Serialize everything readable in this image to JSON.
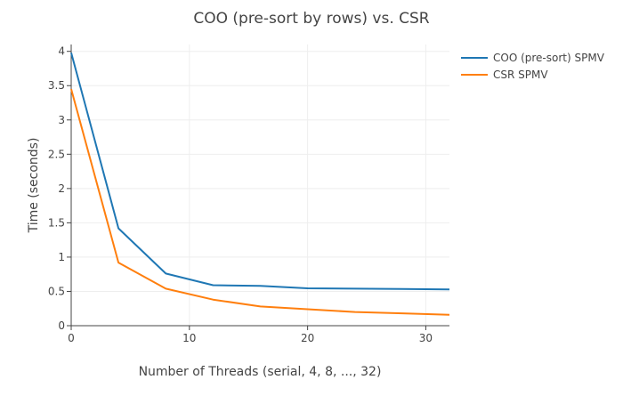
{
  "chart_data": {
    "type": "line",
    "title": "COO (pre-sort by rows) vs. CSR",
    "xlabel": "Number of Threads (serial, 4, 8, ..., 32)",
    "ylabel": "Time (seconds)",
    "xlim": [
      0,
      32
    ],
    "ylim": [
      0,
      4.1
    ],
    "xticks": [
      0,
      10,
      20,
      30
    ],
    "yticks": [
      0,
      0.5,
      1,
      1.5,
      2,
      2.5,
      3,
      3.5,
      4
    ],
    "grid": true,
    "legend_position": "top-right",
    "x": [
      0,
      4,
      8,
      12,
      16,
      20,
      24,
      28,
      32
    ],
    "series": [
      {
        "name": "COO (pre-sort) SPMV",
        "color": "#1f77b4",
        "values": [
          3.98,
          1.42,
          0.76,
          0.59,
          0.58,
          0.545,
          0.54,
          0.535,
          0.53
        ]
      },
      {
        "name": "CSR SPMV",
        "color": "#ff7f0e",
        "values": [
          3.45,
          0.92,
          0.54,
          0.38,
          0.28,
          0.24,
          0.2,
          0.18,
          0.16
        ]
      }
    ]
  }
}
